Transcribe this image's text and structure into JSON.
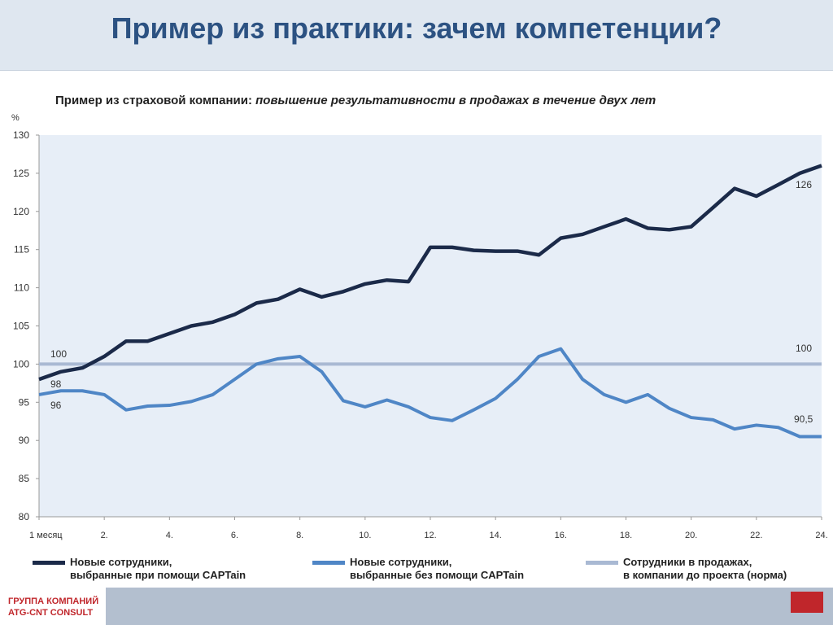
{
  "slide_title": "Пример из практики: зачем компетенции?",
  "footer": [
    "ГРУППА КОМПАНИЙ",
    "ATG-CNT CONSULT"
  ],
  "chart_data": {
    "type": "line",
    "title": "Пример из страховой компании:",
    "subtitle": "повышение результативности в продажах в течение двух лет",
    "y_label": "%",
    "x": [
      0,
      0.67,
      1.33,
      2,
      2.67,
      3.33,
      4,
      4.67,
      5.33,
      6,
      6.67,
      7.33,
      8,
      8.67,
      9.33,
      10,
      10.67,
      11.33,
      12,
      12.67,
      13.33,
      14,
      14.67,
      15.33,
      16,
      16.67,
      17.33,
      18,
      18.67,
      19.33,
      20,
      20.67,
      21.33,
      22,
      22.67,
      23.33,
      24
    ],
    "series": [
      {
        "name": "Новые сотрудники,\nвыбранные при помощи CAPTain",
        "color": "#1b2a49",
        "values": [
          98,
          99,
          99.5,
          101,
          103,
          103,
          104,
          105,
          105.5,
          106.5,
          108,
          108.5,
          109.8,
          108.8,
          109.5,
          110.5,
          111,
          110.8,
          115.3,
          115.3,
          114.9,
          114.8,
          114.8,
          114.3,
          116.5,
          117,
          118,
          119,
          117.8,
          117.6,
          118,
          120.5,
          123,
          122,
          123.5,
          125,
          126
        ]
      },
      {
        "name": "Новые сотрудники,\nвыбранные без помощи CAPTain",
        "color": "#4f86c6",
        "values": [
          96,
          96.5,
          96.5,
          96,
          94,
          94.5,
          94.6,
          95.1,
          96,
          98,
          100,
          100.7,
          101,
          99,
          95.2,
          94.4,
          95.3,
          94.4,
          93,
          92.6,
          94,
          95.5,
          98,
          101,
          102,
          98,
          96,
          95,
          96,
          94.2,
          93,
          92.7,
          91.5,
          92,
          91.7,
          90.5,
          90.5
        ]
      },
      {
        "name": "Сотрудники в продажах,\nв компании до проекта (норма)",
        "color": "#a9b9d3",
        "values": [
          100,
          100,
          100,
          100,
          100,
          100,
          100,
          100,
          100,
          100,
          100,
          100,
          100,
          100,
          100,
          100,
          100,
          100,
          100,
          100,
          100,
          100,
          100,
          100,
          100,
          100,
          100,
          100,
          100,
          100,
          100,
          100,
          100,
          100,
          100,
          100,
          100
        ]
      }
    ],
    "annotations": [
      {
        "value": 100,
        "label": "100"
      },
      {
        "value": 98,
        "label": "98"
      },
      {
        "value": 96,
        "label": "96"
      },
      {
        "value": 126,
        "label": "126"
      },
      {
        "value": 100,
        "label": "100"
      },
      {
        "value": 90.5,
        "label": "90,5"
      }
    ],
    "xlim": [
      0,
      24
    ],
    "xticks": [
      {
        "value": 0,
        "label": "1 месяц"
      },
      {
        "value": 2,
        "label": "2."
      },
      {
        "value": 4,
        "label": "4."
      },
      {
        "value": 6,
        "label": "6."
      },
      {
        "value": 8,
        "label": "8."
      },
      {
        "value": 10,
        "label": "10."
      },
      {
        "value": 12,
        "label": "12."
      },
      {
        "value": 14,
        "label": "14."
      },
      {
        "value": 16,
        "label": "16."
      },
      {
        "value": 18,
        "label": "18."
      },
      {
        "value": 20,
        "label": "20."
      },
      {
        "value": 22,
        "label": "22."
      },
      {
        "value": 24,
        "label": "24."
      }
    ],
    "ylim": [
      80,
      130
    ],
    "yticks": [
      80,
      85,
      90,
      95,
      100,
      105,
      110,
      115,
      120,
      125,
      130
    ]
  }
}
